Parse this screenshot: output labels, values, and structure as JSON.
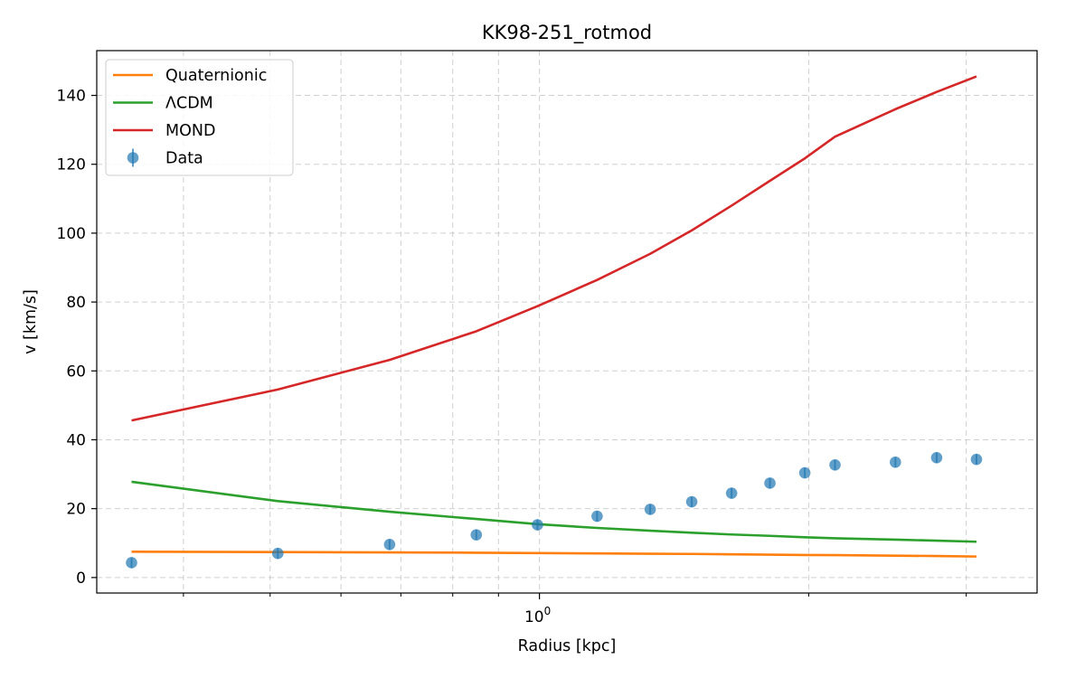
{
  "chart_data": {
    "type": "line",
    "title": "KK98-251_rotmod",
    "xlabel": "Radius [kpc]",
    "ylabel": "v [km/s]",
    "xscale": "log",
    "xlim": [
      0.32,
      3.6
    ],
    "ylim": [
      -4.5,
      153
    ],
    "grid": true,
    "legend_position": "top-left",
    "y_ticks": [
      0,
      20,
      40,
      60,
      80,
      100,
      120,
      140
    ],
    "x_major_ticks": [
      1
    ],
    "x_major_tick_labels": [
      "10^0"
    ],
    "x_minor_ticks": [
      0.4,
      0.5,
      0.6,
      0.7,
      0.8,
      0.9,
      2,
      3
    ],
    "x": [
      0.35,
      0.51,
      0.68,
      0.85,
      0.995,
      1.16,
      1.33,
      1.48,
      1.64,
      1.81,
      1.98,
      2.14,
      2.5,
      2.78,
      3.08
    ],
    "series": [
      {
        "name": "Quaternionic",
        "kind": "line",
        "color": "#ff7f0e",
        "values": [
          7.5,
          7.4,
          7.3,
          7.2,
          7.1,
          7.0,
          6.9,
          6.85,
          6.75,
          6.65,
          6.55,
          6.5,
          6.35,
          6.25,
          6.1
        ]
      },
      {
        "name": "ΛCDM",
        "kind": "line",
        "color": "#2ca02c",
        "values": [
          27.8,
          22.2,
          19.1,
          17.0,
          15.5,
          14.4,
          13.6,
          13.0,
          12.5,
          12.1,
          11.7,
          11.4,
          11.0,
          10.7,
          10.4
        ]
      },
      {
        "name": "MOND",
        "kind": "line",
        "color": "#d62728",
        "values": [
          45.6,
          54.6,
          63.2,
          71.5,
          78.8,
          86.4,
          94.0,
          100.8,
          108.0,
          115.2,
          121.7,
          128.0,
          136.0,
          141.0,
          145.5
        ]
      },
      {
        "name": "Data",
        "kind": "errorbar",
        "color": "#1f77b4",
        "values": [
          4.3,
          7.0,
          9.6,
          12.4,
          15.3,
          17.8,
          19.8,
          22.0,
          24.5,
          27.4,
          30.4,
          32.7,
          33.5,
          34.8,
          34.3
        ],
        "errors": [
          1.5,
          1.5,
          1.5,
          1.5,
          1.5,
          1.5,
          1.5,
          1.5,
          1.5,
          1.5,
          1.5,
          1.5,
          1.5,
          1.5,
          1.5
        ]
      }
    ]
  }
}
